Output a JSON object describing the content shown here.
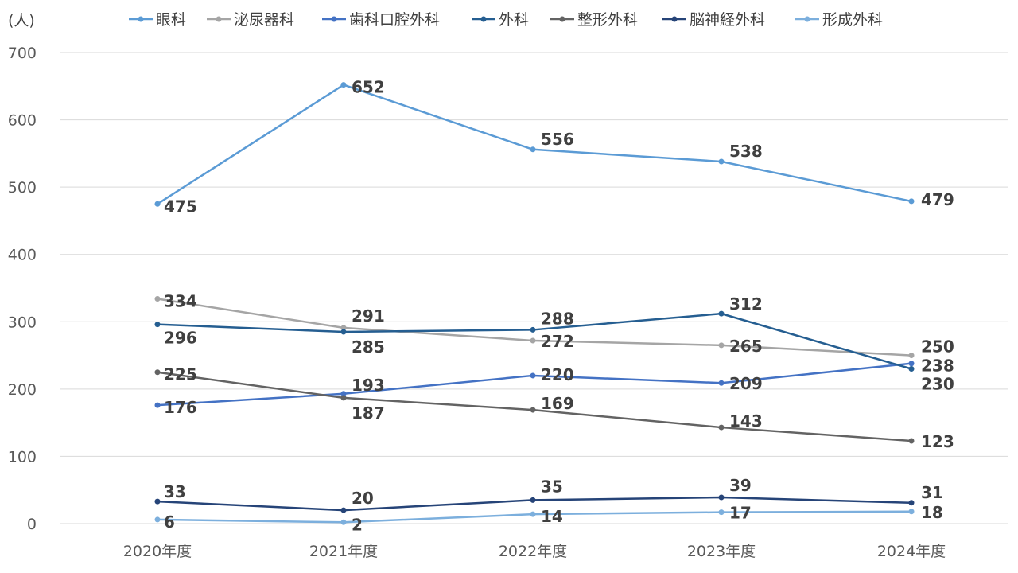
{
  "chart_data": {
    "type": "line",
    "title": "",
    "xlabel": "",
    "ylabel": "(人)",
    "ylim": [
      0,
      700
    ],
    "yticks": [
      0,
      100,
      200,
      300,
      400,
      500,
      600,
      700
    ],
    "grid": true,
    "legend_position": "top",
    "categories": [
      "2020年度",
      "2021年度",
      "2022年度",
      "2023年度",
      "2024年度"
    ],
    "series": [
      {
        "name": "眼科",
        "color": "#5B9BD5",
        "values": [
          475,
          652,
          556,
          538,
          479
        ]
      },
      {
        "name": "泌尿器科",
        "color": "#A5A5A5",
        "values": [
          334,
          291,
          272,
          265,
          250
        ]
      },
      {
        "name": "歯科口腔外科",
        "color": "#4472C4",
        "values": [
          176,
          193,
          220,
          209,
          238
        ]
      },
      {
        "name": "外科",
        "color": "#255E91",
        "values": [
          296,
          285,
          288,
          312,
          230
        ]
      },
      {
        "name": "整形外科",
        "color": "#636363",
        "values": [
          225,
          187,
          169,
          143,
          123
        ]
      },
      {
        "name": "脳神経外科",
        "color": "#264478",
        "values": [
          33,
          20,
          35,
          39,
          31
        ]
      },
      {
        "name": "形成外科",
        "color": "#7CAFDD",
        "values": [
          6,
          2,
          14,
          17,
          18
        ]
      }
    ]
  }
}
